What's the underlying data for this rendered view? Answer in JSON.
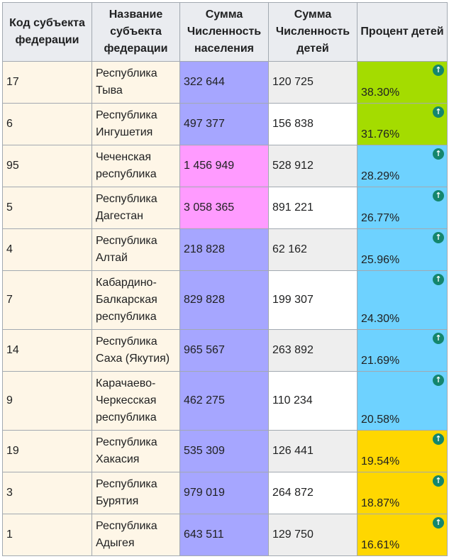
{
  "headers": {
    "code": "Код субъекта федерации",
    "name": "Название субъекта федерации",
    "population": "Сумма Численность населения",
    "children": "Сумма Численность детей",
    "percent": "Процент детей"
  },
  "colors": {
    "header_bg": "#eaecf0",
    "label_bg": "#fef6e7",
    "pop_purple": "#a6a6ff",
    "pop_pink": "#ff9bff",
    "kids_grey": "#eeeeee",
    "kids_white": "#ffffff",
    "pct_green": "#a4dc00",
    "pct_blue": "#6ed2ff",
    "pct_yellow": "#ffd700",
    "arrow_green": "#14866d"
  },
  "rows": [
    {
      "code": "17",
      "name": "Республика Тыва",
      "population": "322 644",
      "children": "120 725",
      "percent": "38.30%",
      "pop_color": "#a6a6ff",
      "kids_color": "#eeeeee",
      "pct_color": "#a4dc00",
      "icon": "arrow-up-icon"
    },
    {
      "code": "6",
      "name": "Республика Ингушетия",
      "population": "497 377",
      "children": "156 838",
      "percent": "31.76%",
      "pop_color": "#a6a6ff",
      "kids_color": "#ffffff",
      "pct_color": "#a4dc00",
      "icon": "arrow-up-icon"
    },
    {
      "code": "95",
      "name": "Чеченская республика",
      "population": "1 456 949",
      "children": "528 912",
      "percent": "28.29%",
      "pop_color": "#ff9bff",
      "kids_color": "#eeeeee",
      "pct_color": "#6ed2ff",
      "icon": "arrow-up-icon"
    },
    {
      "code": "5",
      "name": "Республика Дагестан",
      "population": "3 058 365",
      "children": "891 221",
      "percent": "26.77%",
      "pop_color": "#ff9bff",
      "kids_color": "#ffffff",
      "pct_color": "#6ed2ff",
      "icon": "arrow-up-icon"
    },
    {
      "code": "4",
      "name": "Республика Алтай",
      "population": "218 828",
      "children": "62 162",
      "percent": "25.96%",
      "pop_color": "#a6a6ff",
      "kids_color": "#eeeeee",
      "pct_color": "#6ed2ff",
      "icon": "arrow-up-icon"
    },
    {
      "code": "7",
      "name": "Кабардино-Балкарская республика",
      "population": "829 828",
      "children": "199 307",
      "percent": "24.30%",
      "pop_color": "#a6a6ff",
      "kids_color": "#ffffff",
      "pct_color": "#6ed2ff",
      "icon": "arrow-up-icon"
    },
    {
      "code": "14",
      "name": "Республика Саха (Якутия)",
      "population": "965 567",
      "children": "263 892",
      "percent": "21.69%",
      "pop_color": "#a6a6ff",
      "kids_color": "#eeeeee",
      "pct_color": "#6ed2ff",
      "icon": "arrow-up-icon"
    },
    {
      "code": "9",
      "name": "Карачаево-Черкесская республика",
      "population": "462 275",
      "children": "110 234",
      "percent": "20.58%",
      "pop_color": "#a6a6ff",
      "kids_color": "#ffffff",
      "pct_color": "#6ed2ff",
      "icon": "arrow-up-icon"
    },
    {
      "code": "19",
      "name": "Республика Хакасия",
      "population": "535 309",
      "children": "126 441",
      "percent": "19.54%",
      "pop_color": "#a6a6ff",
      "kids_color": "#eeeeee",
      "pct_color": "#ffd700",
      "icon": "arrow-up-icon"
    },
    {
      "code": "3",
      "name": "Республика Бурятия",
      "population": "979 019",
      "children": "264 872",
      "percent": "18.87%",
      "pop_color": "#a6a6ff",
      "kids_color": "#ffffff",
      "pct_color": "#ffd700",
      "icon": "arrow-up-icon"
    },
    {
      "code": "1",
      "name": "Республика Адыгея",
      "population": "643 511",
      "children": "129 750",
      "percent": "16.61%",
      "pop_color": "#a6a6ff",
      "kids_color": "#eeeeee",
      "pct_color": "#ffd700",
      "icon": "arrow-up-icon"
    }
  ]
}
